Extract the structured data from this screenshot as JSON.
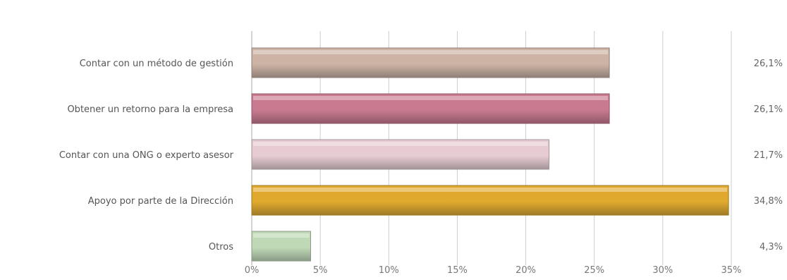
{
  "chart_data": {
    "type": "bar",
    "orientation": "horizontal",
    "title": "",
    "xlabel": "",
    "ylabel": "",
    "categories": [
      "Contar con un método de gestión",
      "Obtener un retorno para la empresa",
      "Contar con una ONG o experto asesor",
      "Apoyo por parte de la Dirección",
      "Otros"
    ],
    "values": [
      26.1,
      26.1,
      21.7,
      34.8,
      4.3
    ],
    "value_labels": [
      "26,1%",
      "26,1%",
      "21,7%",
      "34,8%",
      "4,3%"
    ],
    "xlim": [
      0,
      35
    ],
    "x_ticks": [
      "0%",
      "5%",
      "10%",
      "15%",
      "20%",
      "25%",
      "30%",
      "35%"
    ],
    "grid": true,
    "legend": "none",
    "colors": [
      "#cdb3a4",
      "#c97a90",
      "#e6cbd2",
      "#e0a92e",
      "#bfd9b6"
    ],
    "shadow_colors": [
      "#8f7f77",
      "#8f5868",
      "#a39498",
      "#9e7a26",
      "#8a9a86"
    ]
  }
}
